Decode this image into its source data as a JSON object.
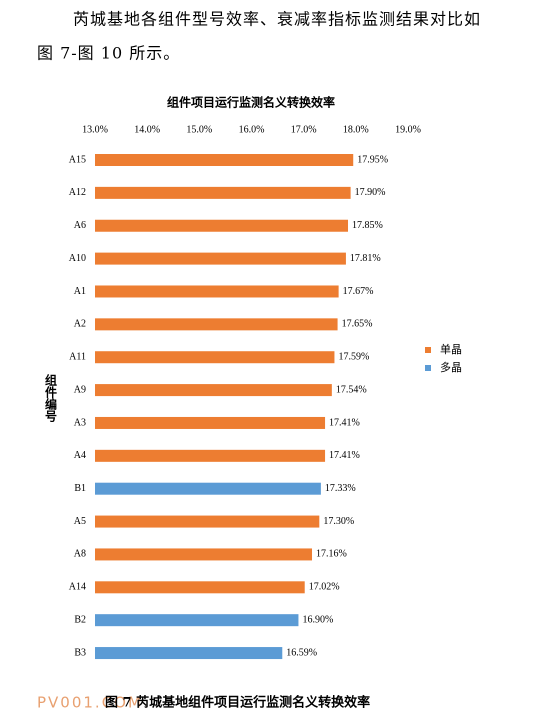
{
  "paragraph_lines": [
    "芮城基地各组件型号效率、衰减率指标监测结果对比如",
    "图 7-图 10 所示。"
  ],
  "chart_data": {
    "type": "bar",
    "orientation": "horizontal",
    "title": "组件项目运行监测名义转换效率",
    "y_label": "组件编号",
    "categories": [
      "A15",
      "A12",
      "A6",
      "A10",
      "A1",
      "A2",
      "A11",
      "A9",
      "A3",
      "A4",
      "B1",
      "A5",
      "A8",
      "A14",
      "B2",
      "B3"
    ],
    "series": [
      {
        "name": "单晶",
        "color": "#ed7d31",
        "values": [
          17.95,
          17.9,
          17.85,
          17.81,
          17.67,
          17.65,
          17.59,
          17.54,
          17.41,
          17.41,
          null,
          17.3,
          17.16,
          17.02,
          null,
          null
        ],
        "value_labels": [
          "17.95%",
          "17.90%",
          "17.85%",
          "17.81%",
          "17.67%",
          "17.65%",
          "17.59%",
          "17.54%",
          "17.41%",
          "17.41%",
          null,
          "17.30%",
          "17.16%",
          "17.02%",
          null,
          null
        ]
      },
      {
        "name": "多晶",
        "color": "#5b9bd5",
        "values": [
          null,
          null,
          null,
          null,
          null,
          null,
          null,
          null,
          null,
          null,
          17.33,
          null,
          null,
          null,
          16.9,
          16.59
        ],
        "value_labels": [
          null,
          null,
          null,
          null,
          null,
          null,
          null,
          null,
          null,
          null,
          "17.33%",
          null,
          null,
          null,
          "16.90%",
          "16.59%"
        ]
      }
    ],
    "xlim": [
      13,
      19
    ],
    "xticks": [
      {
        "value": 13,
        "label": "13.0%"
      },
      {
        "value": 14,
        "label": "14.0%"
      },
      {
        "value": 15,
        "label": "15.0%"
      },
      {
        "value": 16,
        "label": "16.0%"
      },
      {
        "value": 17,
        "label": "17.0%"
      },
      {
        "value": 18,
        "label": "18.0%"
      },
      {
        "value": 19,
        "label": "19.0%"
      }
    ],
    "grid": false,
    "legend": "right"
  },
  "caption": "图 7 芮城基地组件项目运行监测名义转换效率",
  "watermark": "PV001.COM"
}
